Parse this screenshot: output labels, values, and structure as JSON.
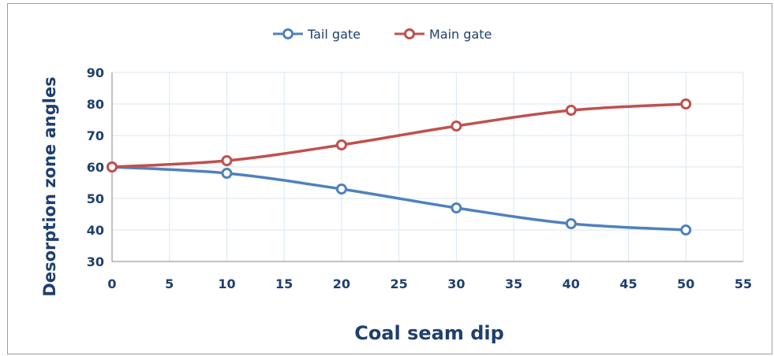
{
  "chart_data": {
    "type": "line",
    "xlabel": "Coal seam dip",
    "ylabel": "Desorption zone angles",
    "xlim": [
      0,
      55
    ],
    "ylim": [
      30,
      90
    ],
    "x_ticks": [
      "0",
      "5",
      "10",
      "15",
      "20",
      "25",
      "30",
      "35",
      "40",
      "45",
      "50",
      "55"
    ],
    "y_ticks": [
      "30",
      "40",
      "50",
      "60",
      "70",
      "80",
      "90"
    ],
    "grid": true,
    "legend_position": "top-center",
    "smooth": true,
    "x": [
      0,
      10,
      20,
      30,
      40,
      50
    ],
    "series": [
      {
        "name": "Tail gate",
        "color": "#4f81bd",
        "values": [
          60,
          58,
          53,
          47,
          42,
          40
        ]
      },
      {
        "name": "Main gate",
        "color": "#c0504d",
        "values": [
          60,
          62,
          67,
          73,
          78,
          80
        ]
      }
    ]
  }
}
